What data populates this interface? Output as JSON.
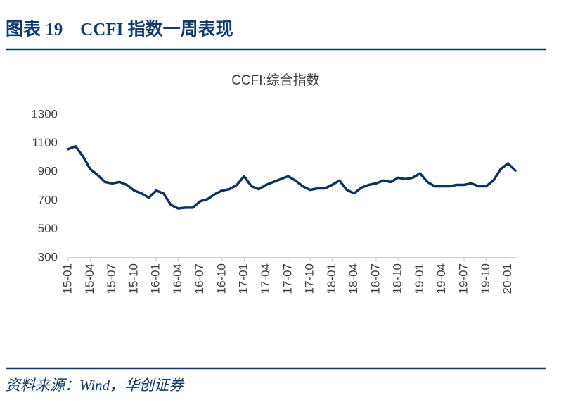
{
  "header": {
    "title": "图表 19　CCFI 指数一周表现"
  },
  "footer": {
    "source": "资料来源：Wind，华创证券"
  },
  "chart_data": {
    "type": "line",
    "title": "CCFI:综合指数",
    "categories": [
      "15-01",
      null,
      null,
      "15-04",
      null,
      null,
      "15-07",
      null,
      null,
      "15-10",
      null,
      null,
      "16-01",
      null,
      null,
      "16-04",
      null,
      null,
      "16-07",
      null,
      null,
      "16-10",
      null,
      null,
      "17-01",
      null,
      null,
      "17-04",
      null,
      null,
      "17-07",
      null,
      null,
      "17-10",
      null,
      null,
      "18-01",
      null,
      null,
      "18-04",
      null,
      null,
      "18-07",
      null,
      null,
      "18-10",
      null,
      null,
      "19-01",
      null,
      null,
      "19-04",
      null,
      null,
      "19-07",
      null,
      null,
      "19-10",
      null,
      null,
      "20-01",
      null
    ],
    "series": [
      {
        "name": "CCFI:综合指数",
        "color": "#0e3163",
        "values": [
          1060,
          1080,
          1010,
          920,
          880,
          830,
          820,
          830,
          810,
          770,
          750,
          720,
          770,
          750,
          670,
          645,
          650,
          650,
          695,
          710,
          745,
          770,
          780,
          810,
          870,
          800,
          780,
          810,
          830,
          850,
          870,
          840,
          800,
          775,
          785,
          785,
          810,
          840,
          775,
          750,
          790,
          810,
          820,
          840,
          830,
          860,
          850,
          860,
          890,
          830,
          800,
          800,
          800,
          810,
          810,
          820,
          800,
          800,
          840,
          920,
          960,
          910
        ]
      }
    ],
    "ylim": [
      300,
      1300
    ],
    "yticks": [
      300,
      500,
      700,
      900,
      1100,
      1300
    ],
    "grid": false
  }
}
